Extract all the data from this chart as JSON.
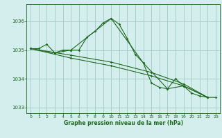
{
  "xlabel": "Graphe pression niveau de la mer (hPa)",
  "bg_color": "#d4eeed",
  "grid_color": "#a8cece",
  "line_color": "#1a6b1a",
  "xlim": [
    -0.5,
    23.5
  ],
  "ylim": [
    1032.8,
    1036.6
  ],
  "yticks": [
    1033,
    1034,
    1035,
    1036
  ],
  "xticks": [
    0,
    1,
    2,
    3,
    4,
    5,
    6,
    7,
    8,
    9,
    10,
    11,
    12,
    13,
    14,
    15,
    16,
    17,
    18,
    19,
    20,
    21,
    22,
    23
  ],
  "series1": [
    [
      0,
      1035.05
    ],
    [
      1,
      1035.05
    ],
    [
      2,
      1035.2
    ],
    [
      3,
      1034.9
    ],
    [
      4,
      1035.0
    ],
    [
      5,
      1035.0
    ],
    [
      6,
      1035.0
    ],
    [
      7,
      1035.45
    ],
    [
      8,
      1035.65
    ],
    [
      9,
      1035.95
    ],
    [
      10,
      1036.1
    ],
    [
      11,
      1035.9
    ],
    [
      12,
      1035.4
    ],
    [
      13,
      1034.85
    ],
    [
      14,
      1034.55
    ],
    [
      15,
      1033.85
    ],
    [
      16,
      1033.7
    ],
    [
      17,
      1033.65
    ],
    [
      18,
      1034.0
    ],
    [
      19,
      1033.75
    ],
    [
      20,
      1033.5
    ],
    [
      21,
      1033.4
    ],
    [
      22,
      1033.35
    ],
    [
      23,
      1033.35
    ]
  ],
  "series2": [
    [
      0,
      1035.05
    ],
    [
      3,
      1034.9
    ],
    [
      5,
      1035.0
    ],
    [
      10,
      1036.1
    ],
    [
      14,
      1034.55
    ],
    [
      17,
      1033.65
    ],
    [
      19,
      1033.75
    ],
    [
      22,
      1033.35
    ]
  ],
  "series3": [
    [
      0,
      1035.05
    ],
    [
      5,
      1034.72
    ],
    [
      10,
      1034.45
    ],
    [
      15,
      1034.1
    ],
    [
      19,
      1033.75
    ],
    [
      22,
      1033.35
    ]
  ],
  "series4": [
    [
      0,
      1035.05
    ],
    [
      5,
      1034.82
    ],
    [
      10,
      1034.58
    ],
    [
      15,
      1034.22
    ],
    [
      19,
      1033.82
    ],
    [
      22,
      1033.35
    ]
  ]
}
